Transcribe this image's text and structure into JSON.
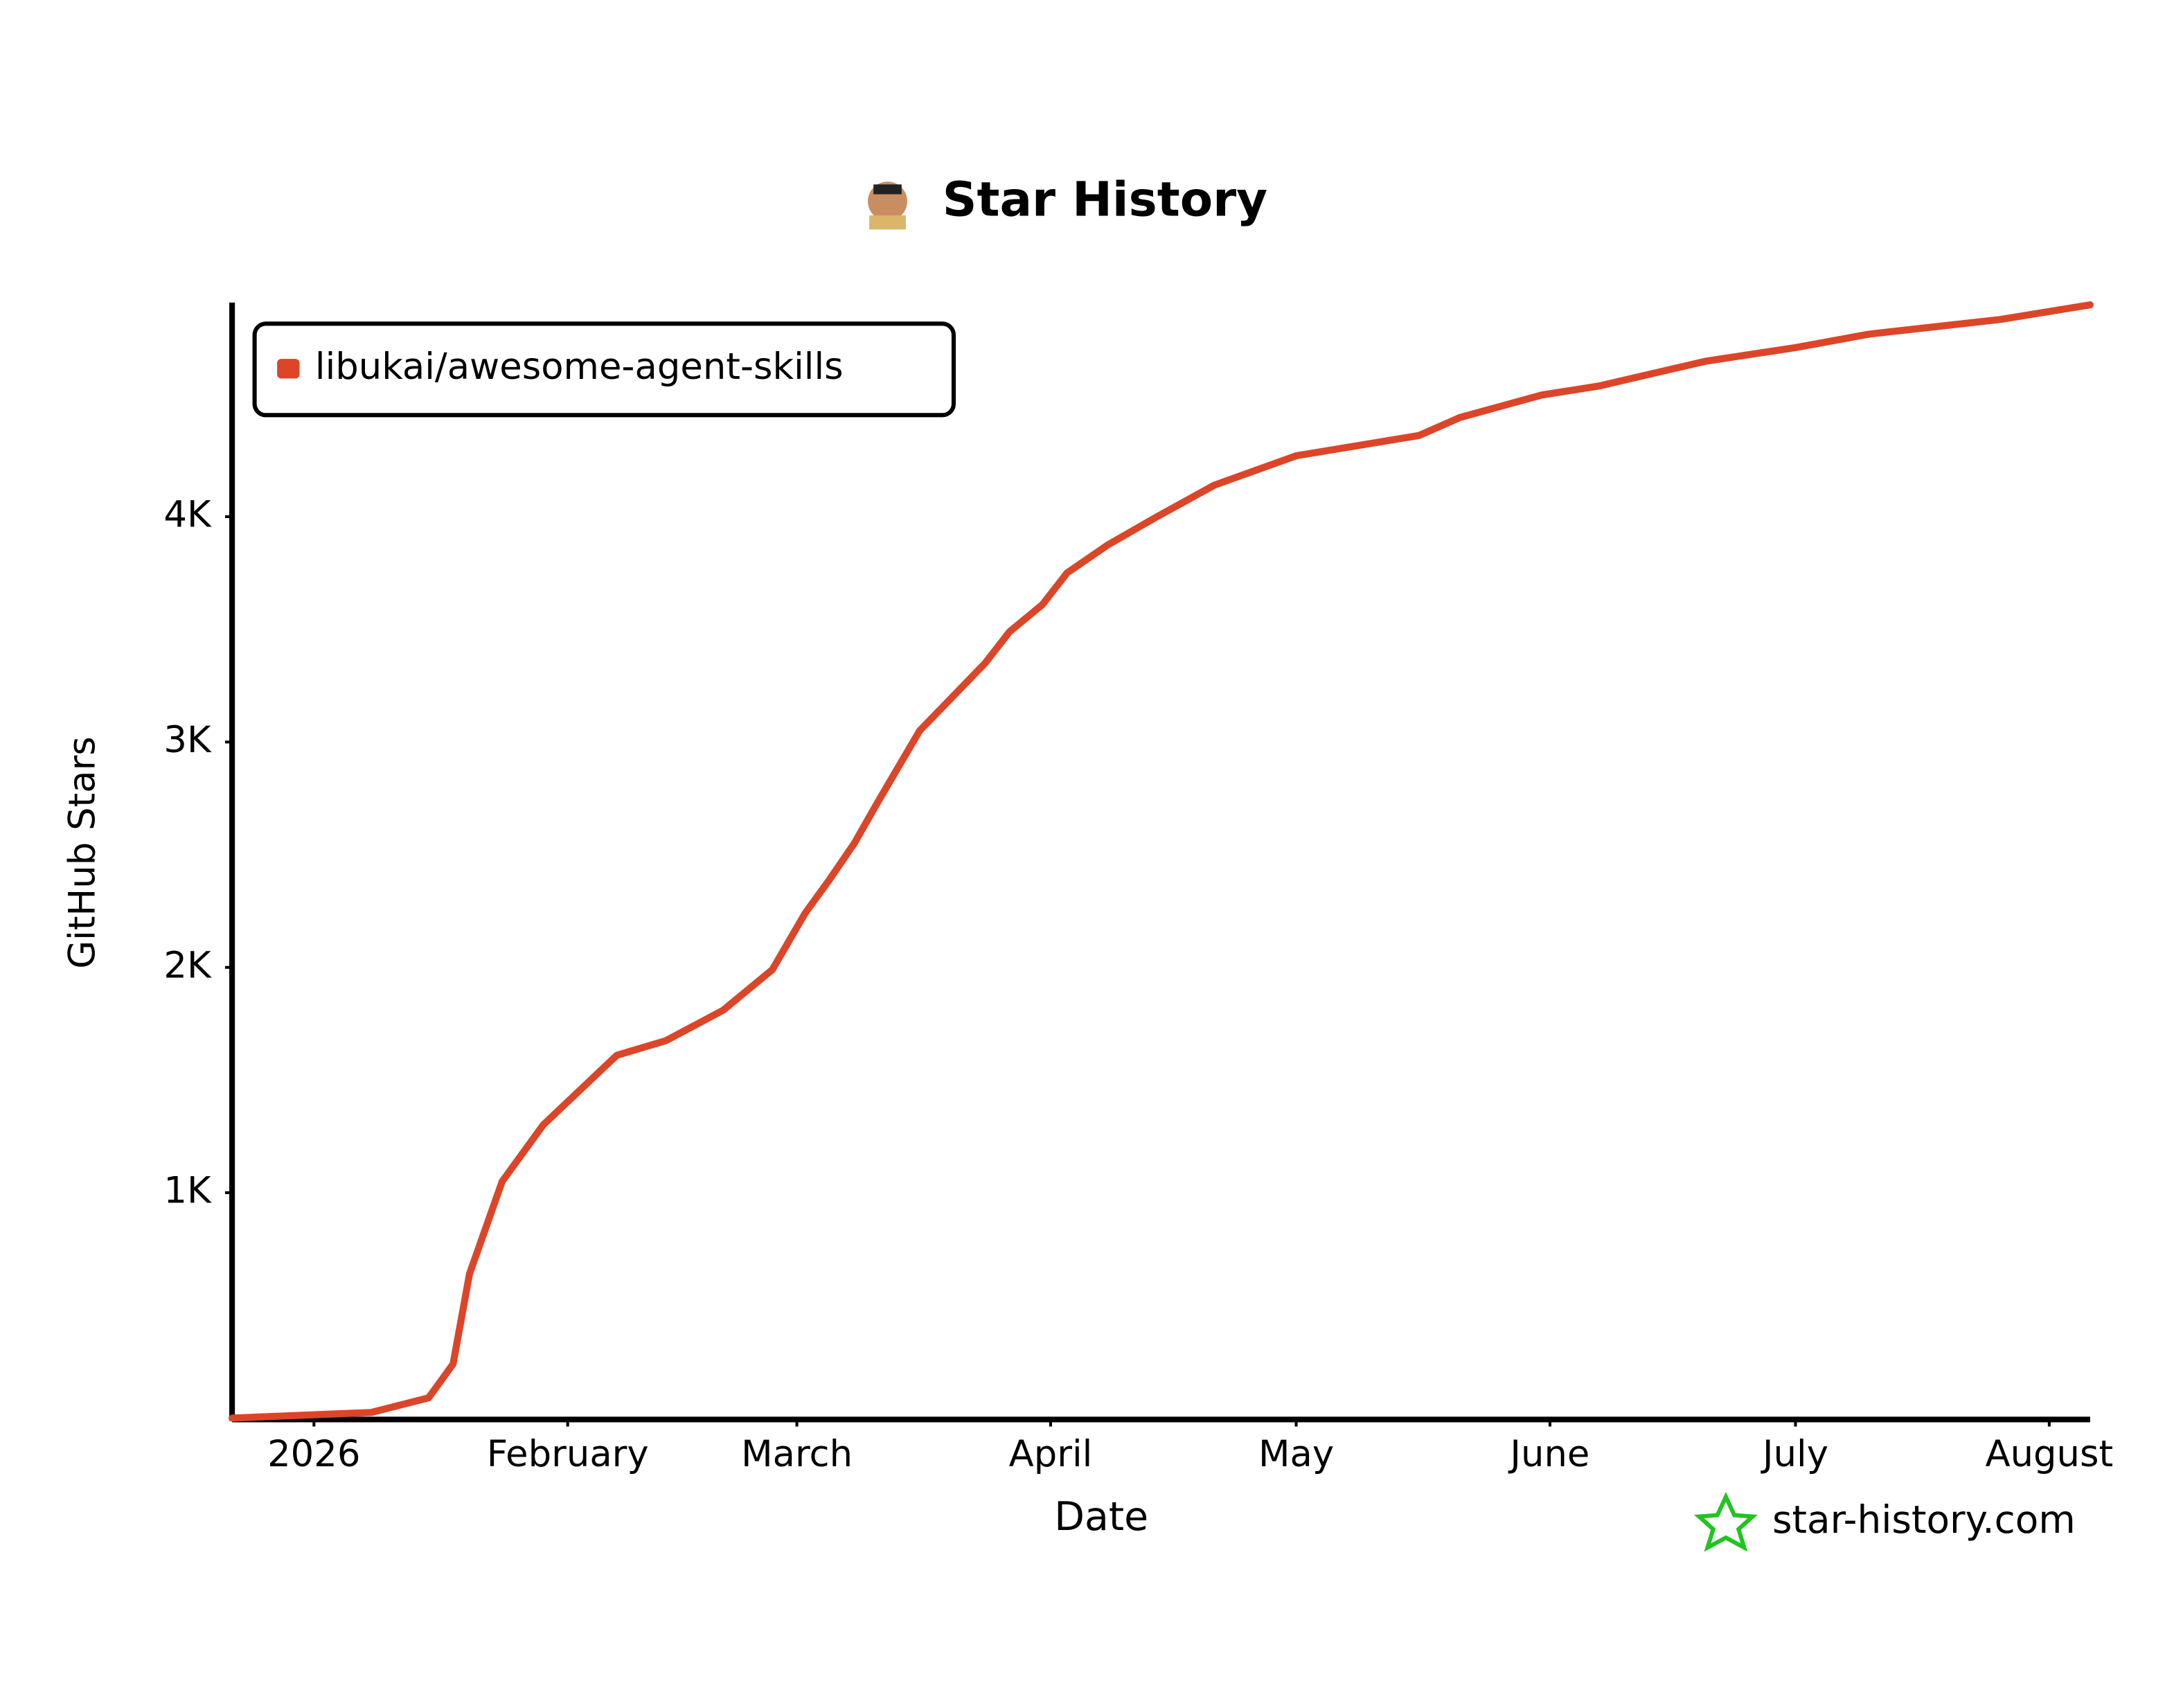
{
  "chart_data": {
    "type": "line",
    "title": "Star History",
    "x_label": "Date",
    "y_label": "GitHub Stars",
    "watermark": "star-history.com",
    "legend": "top-left",
    "xlim": [
      -10,
      217
    ],
    "xticks": [
      {
        "value": 0,
        "label": "2026"
      },
      {
        "value": 31,
        "label": "February"
      },
      {
        "value": 59,
        "label": "March"
      },
      {
        "value": 90,
        "label": "April"
      },
      {
        "value": 120,
        "label": "May"
      },
      {
        "value": 151,
        "label": "June"
      },
      {
        "value": 181,
        "label": "July"
      },
      {
        "value": 212,
        "label": "August"
      }
    ],
    "ylim": [
      0,
      4950
    ],
    "yticks": [
      {
        "value": 1000,
        "label": "1K"
      },
      {
        "value": 2000,
        "label": "2K"
      },
      {
        "value": 3000,
        "label": "3K"
      },
      {
        "value": 4000,
        "label": "4K"
      }
    ],
    "series": [
      {
        "name": "libukai/awesome-agent-skills",
        "color": "#dd4528",
        "x": [
          -10,
          7,
          14,
          17,
          19,
          23,
          28,
          37,
          43,
          50,
          56,
          60,
          63,
          66,
          69,
          74,
          82,
          85,
          89,
          92,
          97,
          103,
          110,
          120,
          135,
          140,
          150,
          157,
          170,
          181,
          190,
          206,
          217
        ],
        "values": [
          0,
          25,
          90,
          240,
          640,
          1050,
          1300,
          1610,
          1675,
          1810,
          1990,
          2240,
          2390,
          2550,
          2740,
          3050,
          3350,
          3490,
          3610,
          3750,
          3875,
          4000,
          4140,
          4270,
          4360,
          4440,
          4540,
          4580,
          4690,
          4750,
          4810,
          4875,
          4940
        ]
      }
    ]
  }
}
